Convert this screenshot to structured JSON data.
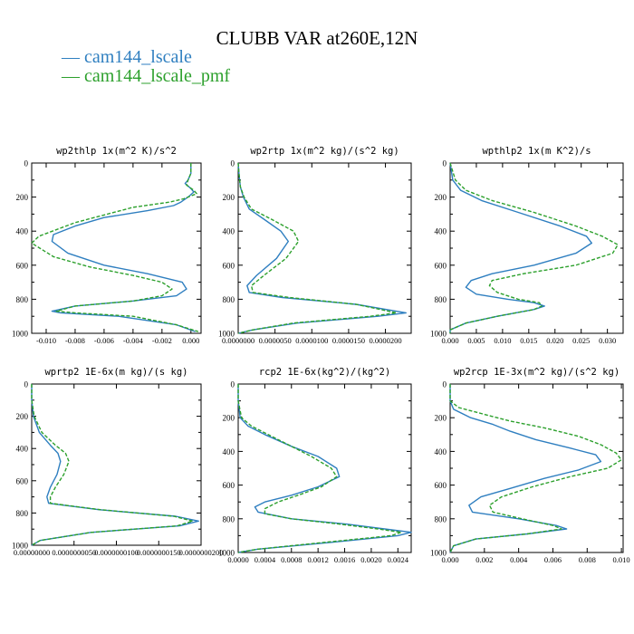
{
  "figure": {
    "title": "CLUBB VAR at260E,12N"
  },
  "legend": [
    {
      "label": "cam144_lscale",
      "color": "#2f7fc0"
    },
    {
      "label": "cam144_lscale_pmf",
      "color": "#2ca02c"
    }
  ],
  "chart_data": [
    {
      "type": "line",
      "title": "wp2thlp  1x(m^2 K)/s^2",
      "xlim": [
        -0.011,
        0.0007
      ],
      "ylim": [
        0,
        1000
      ],
      "y_inverted": true,
      "xticks": [
        "-0.010",
        "-0.008",
        "-0.006",
        "-0.004",
        "-0.002",
        "0.000"
      ],
      "xtick_values": [
        -0.01,
        -0.008,
        -0.006,
        -0.004,
        -0.002,
        0.0
      ],
      "yticks": [
        "0",
        "200",
        "400",
        "600",
        "800",
        "1000"
      ],
      "series": [
        {
          "x": [
            0,
            0,
            -0.0002,
            -0.0004,
            0,
            0.0002,
            -0.0002,
            -0.0007,
            -0.0012,
            -0.003,
            -0.006,
            -0.008,
            -0.0095,
            -0.0096,
            -0.0085,
            -0.006,
            -0.003,
            -0.0006,
            -0.0003,
            -0.001,
            -0.004,
            -0.008,
            -0.0096,
            -0.009,
            -0.005,
            -0.001,
            0.0003
          ],
          "y": [
            0,
            60,
            100,
            120,
            150,
            170,
            200,
            230,
            250,
            280,
            320,
            370,
            420,
            460,
            530,
            600,
            650,
            700,
            740,
            780,
            810,
            840,
            870,
            880,
            900,
            950,
            990
          ]
        },
        {
          "x": [
            0,
            0,
            -0.0002,
            -0.0003,
            0.0002,
            0.0004,
            -0.0005,
            -0.0015,
            -0.004,
            -0.008,
            -0.0105,
            -0.011,
            -0.0095,
            -0.007,
            -0.004,
            -0.002,
            -0.0013,
            -0.002,
            -0.004,
            -0.008,
            -0.0093,
            -0.008,
            -0.004,
            -0.001,
            0.0005
          ],
          "y": [
            0,
            60,
            100,
            130,
            160,
            180,
            210,
            230,
            260,
            350,
            430,
            470,
            550,
            610,
            660,
            700,
            740,
            780,
            810,
            840,
            870,
            880,
            900,
            950,
            990
          ]
        }
      ]
    },
    {
      "type": "line",
      "title": "wp2rtp  1x(m^2 kg)/(s^2 kg)",
      "xlim": [
        0,
        2.35e-05
      ],
      "ylim": [
        0,
        1000
      ],
      "y_inverted": true,
      "xticks": [
        "0.0000000",
        "0.0000050",
        "0.0000100",
        "0.0000150",
        "0.0000200"
      ],
      "xtick_values": [
        0,
        5e-06,
        1e-05,
        1.5e-05,
        2e-05
      ],
      "yticks": [
        "0",
        "200",
        "400",
        "600",
        "800",
        "1000"
      ],
      "series": [
        {
          "x": [
            0,
            1e-07,
            3e-07,
            7e-07,
            1.5e-06,
            3.5e-06,
            5.8e-06,
            6.8e-06,
            5.2e-06,
            2.5e-06,
            1.2e-06,
            1.5e-06,
            6e-06,
            1.6e-05,
            2.28e-05,
            1.9e-05,
            8e-06,
            2e-06,
            0
          ],
          "y": [
            0,
            60,
            140,
            200,
            270,
            330,
            400,
            460,
            560,
            660,
            720,
            760,
            790,
            830,
            880,
            900,
            940,
            980,
            1000
          ]
        },
        {
          "x": [
            0,
            1e-07,
            3e-07,
            8e-07,
            1.8e-06,
            4.5e-06,
            7.5e-06,
            8.2e-06,
            6.5e-06,
            3.5e-06,
            1.8e-06,
            2e-06,
            7e-06,
            1.6e-05,
            2.15e-05,
            1.8e-05,
            7.5e-06,
            2e-06,
            0
          ],
          "y": [
            0,
            60,
            140,
            200,
            270,
            330,
            400,
            460,
            560,
            660,
            720,
            760,
            790,
            830,
            880,
            900,
            940,
            980,
            1000
          ]
        }
      ]
    },
    {
      "type": "line",
      "title": "wpthlp2  1x(m K^2)/s",
      "xlim": [
        0,
        0.033
      ],
      "ylim": [
        0,
        1000
      ],
      "y_inverted": true,
      "xticks": [
        "0.000",
        "0.005",
        "0.010",
        "0.015",
        "0.020",
        "0.025",
        "0.030"
      ],
      "xtick_values": [
        0,
        0.005,
        0.01,
        0.015,
        0.02,
        0.025,
        0.03
      ],
      "yticks": [
        "0",
        "200",
        "400",
        "600",
        "800",
        "1000"
      ],
      "series": [
        {
          "x": [
            0,
            0.0005,
            0.002,
            0.006,
            0.013,
            0.021,
            0.026,
            0.027,
            0.024,
            0.016,
            0.008,
            0.004,
            0.003,
            0.005,
            0.011,
            0.016,
            0.018,
            0.016,
            0.009,
            0.003,
            0,
            0
          ],
          "y": [
            0,
            100,
            160,
            220,
            290,
            370,
            430,
            470,
            530,
            600,
            650,
            690,
            730,
            770,
            800,
            820,
            840,
            860,
            900,
            940,
            980,
            1000
          ]
        },
        {
          "x": [
            0,
            0.001,
            0.003,
            0.008,
            0.016,
            0.024,
            0.029,
            0.032,
            0.031,
            0.024,
            0.014,
            0.008,
            0.0075,
            0.009,
            0.013,
            0.017,
            0.0175,
            0.016,
            0.009,
            0.003,
            0,
            0
          ],
          "y": [
            0,
            100,
            160,
            220,
            290,
            370,
            430,
            480,
            530,
            600,
            650,
            690,
            720,
            760,
            800,
            820,
            840,
            860,
            900,
            940,
            980,
            1000
          ]
        }
      ]
    },
    {
      "type": "line",
      "title": "wprtp2  1E-6x(m kg)/(s kg)",
      "xlim": [
        0,
        2e-08
      ],
      "ylim": [
        0,
        1000
      ],
      "y_inverted": true,
      "xticks": [
        "0.00000000",
        "0.0000000050",
        "0.0000000100",
        "0.0000000150",
        "0.0000000200"
      ],
      "xtick_values": [
        0,
        5e-09,
        1e-08,
        1.5e-08,
        2e-08
      ],
      "yticks": [
        "0",
        "200",
        "400",
        "600",
        "800",
        "1000"
      ],
      "series": [
        {
          "x": [
            0,
            0,
            2e-10,
            9e-10,
            2.2e-09,
            3.1e-09,
            3.4e-09,
            3e-09,
            2.2e-09,
            1.8e-09,
            2e-09,
            8e-09,
            1.7e-08,
            1.97e-08,
            1.75e-08,
            7e-09,
            1e-09,
            0
          ],
          "y": [
            0,
            100,
            200,
            300,
            380,
            430,
            480,
            560,
            640,
            700,
            740,
            780,
            820,
            850,
            880,
            920,
            970,
            1000
          ]
        },
        {
          "x": [
            0,
            0,
            3e-10,
            1.2e-09,
            2.8e-09,
            4e-09,
            4.4e-09,
            3.8e-09,
            2.8e-09,
            2.2e-09,
            2.2e-09,
            8.2e-09,
            1.68e-08,
            1.9e-08,
            1.72e-08,
            7e-09,
            1e-09,
            0
          ],
          "y": [
            0,
            100,
            200,
            300,
            380,
            430,
            480,
            560,
            640,
            700,
            740,
            780,
            820,
            850,
            880,
            920,
            970,
            1000
          ]
        }
      ]
    },
    {
      "type": "line",
      "title": "rcp2  1E-6x(kg^2)/(kg^2)",
      "xlim": [
        0,
        0.0026
      ],
      "ylim": [
        0,
        1000
      ],
      "y_inverted": true,
      "xticks": [
        "0.0000",
        "0.0004",
        "0.0008",
        "0.0012",
        "0.0016",
        "0.0020",
        "0.0024"
      ],
      "xtick_values": [
        0,
        0.0004,
        0.0008,
        0.0012,
        0.0016,
        0.002,
        0.0024
      ],
      "yticks": [
        "0",
        "200",
        "400",
        "600",
        "800",
        "1000"
      ],
      "series": [
        {
          "x": [
            0,
            0,
            3e-05,
            0.00015,
            0.0004,
            0.0008,
            0.0012,
            0.00148,
            0.00152,
            0.0012,
            0.0008,
            0.0004,
            0.00025,
            0.0003,
            0.0008,
            0.0016,
            0.0022,
            0.00262,
            0.0024,
            0.0014,
            0.0003,
            0
          ],
          "y": [
            0,
            100,
            200,
            250,
            300,
            370,
            430,
            500,
            550,
            610,
            660,
            700,
            730,
            760,
            800,
            830,
            860,
            880,
            900,
            940,
            980,
            1000
          ]
        },
        {
          "x": [
            0,
            0,
            5e-05,
            0.0002,
            0.00045,
            0.0008,
            0.0011,
            0.0014,
            0.00148,
            0.00125,
            0.0009,
            0.0006,
            0.0004,
            0.0004,
            0.0008,
            0.0015,
            0.0021,
            0.00245,
            0.0023,
            0.0013,
            0.0003,
            0
          ],
          "y": [
            0,
            100,
            200,
            250,
            300,
            370,
            430,
            500,
            550,
            610,
            660,
            700,
            740,
            770,
            800,
            830,
            860,
            880,
            900,
            940,
            980,
            1000
          ]
        }
      ]
    },
    {
      "type": "line",
      "title": "wp2rcp  1E-3x(m^2 kg)/(s^2 kg)",
      "xlim": [
        0,
        0.0101
      ],
      "ylim": [
        0,
        1000
      ],
      "y_inverted": true,
      "xticks": [
        "0.000",
        "0.002",
        "0.004",
        "0.006",
        "0.008",
        "0.010"
      ],
      "xtick_values": [
        0,
        0.002,
        0.004,
        0.006,
        0.008,
        0.01
      ],
      "yticks": [
        "0",
        "200",
        "400",
        "600",
        "800",
        "1000"
      ],
      "series": [
        {
          "x": [
            0,
            0,
            0.0002,
            0.0012,
            0.0025,
            0.0035,
            0.005,
            0.007,
            0.0085,
            0.0088,
            0.0075,
            0.0055,
            0.0035,
            0.0018,
            0.0011,
            0.0013,
            0.004,
            0.0062,
            0.0068,
            0.0045,
            0.0015,
            0.0002,
            0
          ],
          "y": [
            0,
            100,
            150,
            200,
            240,
            280,
            330,
            380,
            420,
            460,
            510,
            560,
            620,
            670,
            720,
            760,
            800,
            840,
            860,
            890,
            920,
            960,
            1000
          ]
        },
        {
          "x": [
            0,
            0,
            0.0005,
            0.002,
            0.0035,
            0.0055,
            0.0075,
            0.0088,
            0.0097,
            0.01,
            0.0092,
            0.007,
            0.0048,
            0.003,
            0.0023,
            0.0025,
            0.0042,
            0.006,
            0.0065,
            0.0045,
            0.0015,
            0.0002,
            0
          ],
          "y": [
            0,
            100,
            140,
            180,
            220,
            260,
            310,
            360,
            410,
            450,
            500,
            550,
            610,
            670,
            720,
            760,
            800,
            840,
            860,
            890,
            920,
            960,
            1000
          ]
        }
      ]
    }
  ]
}
